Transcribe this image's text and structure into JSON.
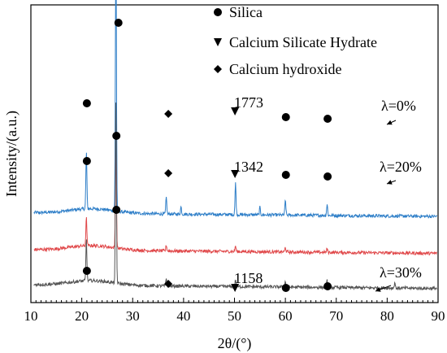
{
  "chart_data": {
    "type": "line",
    "xlabel": "2θ/(°)",
    "ylabel": "Intensity/(a.u.)",
    "xlim": [
      10,
      90
    ],
    "xticks": [
      10,
      20,
      30,
      40,
      50,
      60,
      70,
      80,
      90
    ],
    "grid": false,
    "legend": {
      "placement": "top-center",
      "entries": [
        {
          "marker": "circle",
          "label": "Silica"
        },
        {
          "marker": "triangle-down",
          "label": "Calcium Silicate Hydrate"
        },
        {
          "marker": "diamond",
          "label": "Calcium hydroxide"
        }
      ]
    },
    "series": [
      {
        "name": "λ=0%",
        "color": "#2f7fc8",
        "baseline": 0.8,
        "peaks": [
          [
            20.9,
            0.62
          ],
          [
            26.7,
            3.0
          ],
          [
            36.6,
            0.18
          ],
          [
            39.5,
            0.08
          ],
          [
            50.2,
            0.34
          ],
          [
            55.0,
            0.08
          ],
          [
            60.0,
            0.16
          ],
          [
            68.2,
            0.12
          ]
        ],
        "annotation": "1773",
        "label_marker_peaks": [
          [
            21.0,
            "circle"
          ],
          [
            27.2,
            "circle"
          ],
          [
            37.0,
            "diamond"
          ],
          [
            50.1,
            "triangle-down"
          ],
          [
            60.1,
            "circle"
          ],
          [
            68.3,
            "circle"
          ]
        ]
      },
      {
        "name": "λ=20%",
        "color": "#e0484a",
        "baseline": 0.4,
        "peaks": [
          [
            20.9,
            0.3
          ],
          [
            26.7,
            1.15
          ],
          [
            36.6,
            0.06
          ],
          [
            50.2,
            0.06
          ],
          [
            60.0,
            0.05
          ],
          [
            68.2,
            0.04
          ]
        ],
        "annotation": "1342",
        "label_marker_peaks": [
          [
            21.0,
            "circle"
          ],
          [
            26.8,
            "circle"
          ],
          [
            37.0,
            "diamond"
          ],
          [
            50.1,
            "triangle-down"
          ],
          [
            60.1,
            "circle"
          ],
          [
            68.3,
            "circle"
          ]
        ]
      },
      {
        "name": "λ=30%",
        "color": "#555555",
        "baseline": 0.02,
        "peaks": [
          [
            20.9,
            0.45
          ],
          [
            26.7,
            1.98
          ],
          [
            36.6,
            0.08
          ],
          [
            50.2,
            0.07
          ],
          [
            60.0,
            0.06
          ],
          [
            68.2,
            0.07
          ],
          [
            81.5,
            0.06
          ]
        ],
        "annotation": "1158",
        "label_marker_peaks": [
          [
            21.0,
            "circle"
          ],
          [
            26.8,
            "circle"
          ],
          [
            37.0,
            "diamond"
          ],
          [
            50.1,
            "triangle-down"
          ],
          [
            60.1,
            "circle"
          ],
          [
            68.3,
            "circle"
          ]
        ]
      }
    ]
  }
}
